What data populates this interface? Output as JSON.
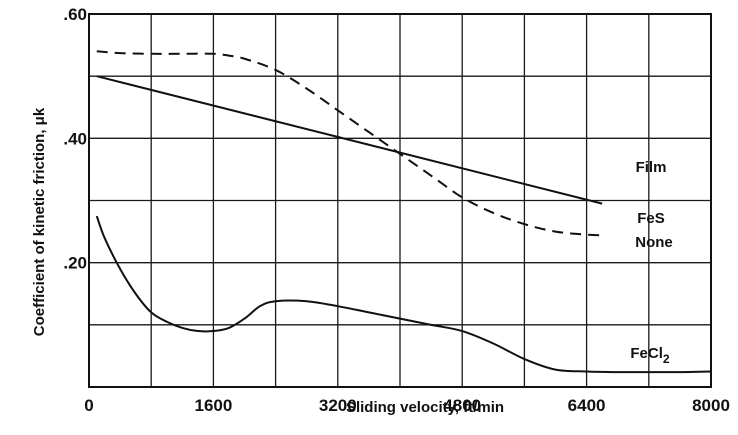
{
  "chart_data": {
    "type": "line",
    "xlabel": "Sliding velocity, ft/min",
    "ylabel": "Coefficient of kinetic friction, μk",
    "xlim": [
      0,
      8000
    ],
    "ylim": [
      0,
      0.6
    ],
    "x_ticks": [
      0,
      800,
      1600,
      2400,
      3200,
      4000,
      4800,
      5600,
      6400,
      7200,
      8000
    ],
    "x_tick_labels": [
      "0",
      "",
      "1600",
      "",
      "3200",
      "",
      "4800",
      "",
      "6400",
      "",
      "8000"
    ],
    "y_ticks": [
      0,
      0.1,
      0.2,
      0.3,
      0.4,
      0.5,
      0.6
    ],
    "y_tick_labels": [
      "",
      "",
      ".20",
      "",
      ".40",
      "",
      ".60"
    ],
    "grid": true,
    "series": [
      {
        "name": "None",
        "style": "dashed",
        "x": [
          100,
          400,
          800,
          1200,
          1600,
          1800,
          2000,
          2400,
          2800,
          3200,
          3600,
          4000,
          4400,
          4800,
          5200,
          5600,
          6000,
          6400,
          6600
        ],
        "y": [
          0.54,
          0.537,
          0.536,
          0.536,
          0.536,
          0.533,
          0.528,
          0.51,
          0.48,
          0.445,
          0.41,
          0.375,
          0.34,
          0.305,
          0.28,
          0.262,
          0.25,
          0.245,
          0.244
        ]
      },
      {
        "name": "Film FeS",
        "style": "solid",
        "x": [
          100,
          6600
        ],
        "y": [
          0.5,
          0.295
        ]
      },
      {
        "name": "FeCl2",
        "style": "solid",
        "x": [
          100,
          200,
          400,
          600,
          800,
          1000,
          1200,
          1400,
          1600,
          1800,
          2000,
          2200,
          2400,
          2800,
          3200,
          3600,
          4000,
          4400,
          4800,
          5200,
          5600,
          6000,
          6400,
          6800,
          7200,
          7600,
          8000
        ],
        "y": [
          0.275,
          0.24,
          0.19,
          0.15,
          0.12,
          0.105,
          0.095,
          0.09,
          0.09,
          0.095,
          0.11,
          0.13,
          0.138,
          0.138,
          0.13,
          0.12,
          0.11,
          0.1,
          0.09,
          0.07,
          0.045,
          0.028,
          0.025,
          0.024,
          0.024,
          0.024,
          0.025
        ]
      }
    ],
    "annotations": [
      "Film",
      "FeS",
      "None",
      "FeCl2"
    ]
  }
}
